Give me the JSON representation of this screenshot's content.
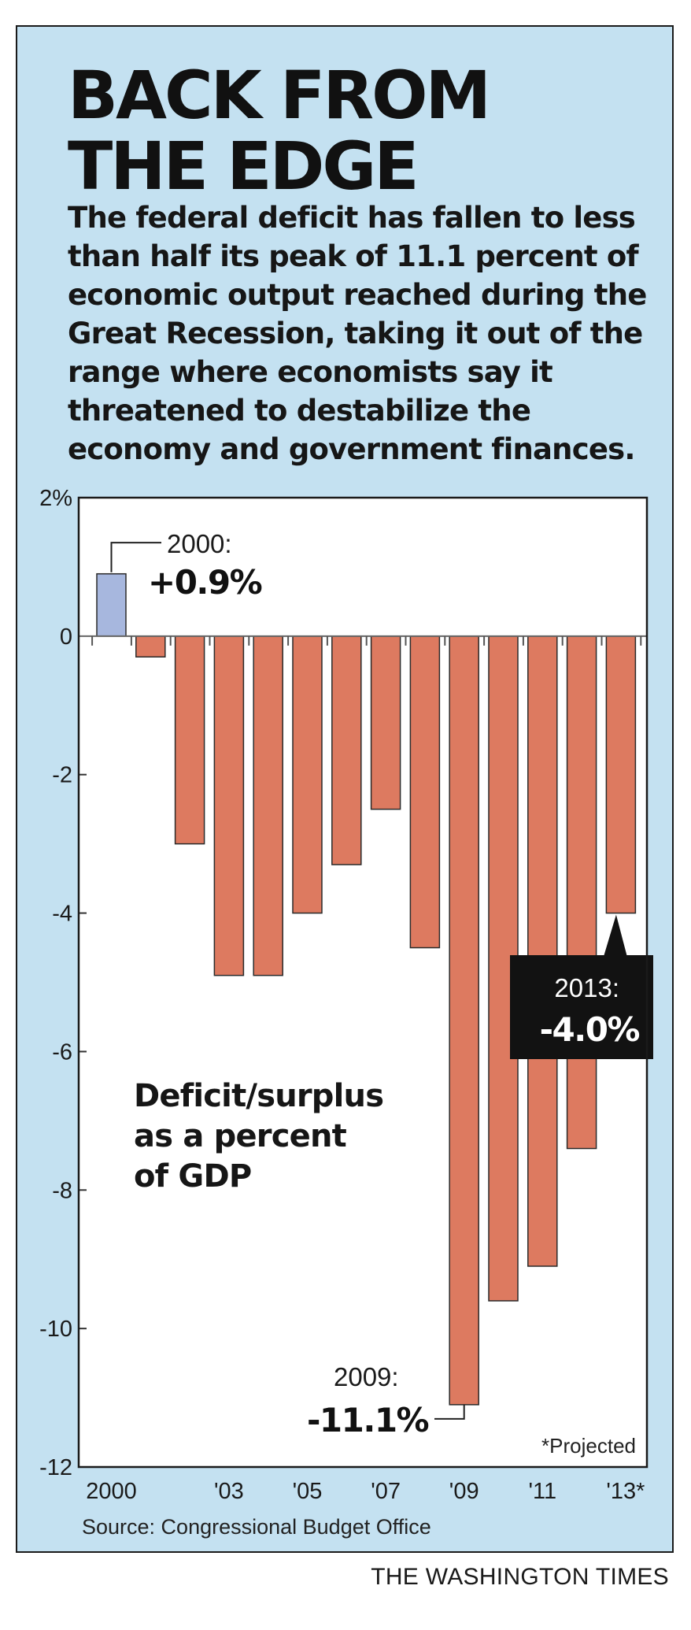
{
  "header": {
    "title_line1": "BACK FROM",
    "title_line2": "THE EDGE",
    "subtitle": "The federal deficit has fallen to less than half its peak of 11.1 percent of economic output reached during the Great Recession, taking it out of the range where economists say it threatened to destabilize the economy and government finances."
  },
  "chart_data": {
    "type": "bar",
    "categories": [
      "2000",
      "2001",
      "2002",
      "2003",
      "2004",
      "2005",
      "2006",
      "2007",
      "2008",
      "2009",
      "2010",
      "2011",
      "2012",
      "2013"
    ],
    "x_tick_labels": [
      "2000",
      "",
      "",
      "'03",
      "",
      "'05",
      "",
      "'07",
      "",
      "'09",
      "",
      "'11",
      "",
      "'13*"
    ],
    "values": [
      0.9,
      -0.3,
      -3.0,
      -4.9,
      -4.9,
      -4.0,
      -3.3,
      -2.5,
      -4.5,
      -11.1,
      -9.6,
      -9.1,
      -7.4,
      -4.0
    ],
    "ylim": [
      -12,
      2
    ],
    "y_ticks": [
      2,
      0,
      -2,
      -4,
      -6,
      -8,
      -10,
      -12
    ],
    "y_tick_labels": [
      "2%",
      "0",
      "-2",
      "-4",
      "-6",
      "-8",
      "-10",
      "-12"
    ],
    "label": "Deficit/surplus as a percent of GDP",
    "label_lines": [
      "Deficit/surplus",
      "as a percent",
      "of GDP"
    ],
    "annotations": [
      {
        "category": "2000",
        "year_text": "2000:",
        "value_text": "+0.9%"
      },
      {
        "category": "2009",
        "year_text": "2009:",
        "value_text": "-11.1%"
      },
      {
        "category": "2013",
        "year_text": "2013:",
        "value_text": "-4.0%"
      }
    ],
    "note": "*Projected",
    "colors": {
      "surplus": "#a7b7de",
      "deficit": "#dd7a60",
      "plot_bg": "#ffffff",
      "border": "#1a1a1a"
    }
  },
  "footer": {
    "source": "Source: Congressional Budget Office",
    "credit": "THE WASHINGTON TIMES"
  }
}
